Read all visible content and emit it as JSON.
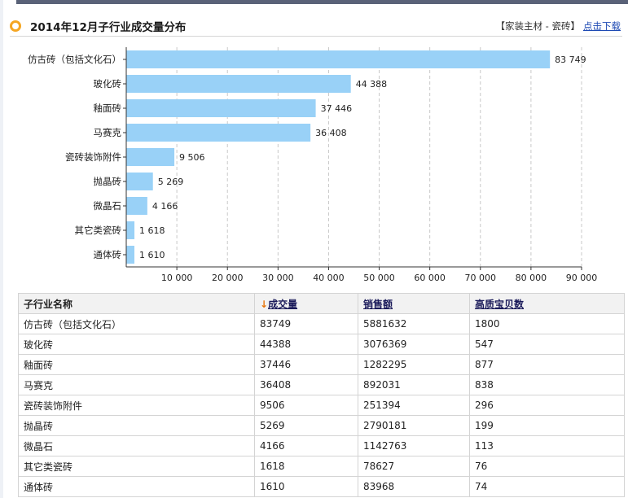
{
  "header": {
    "title": "2014年12月子行业成交量分布",
    "crumb": "【家装主材 - 瓷砖】",
    "download_label": "点击下载"
  },
  "chart_data": {
    "type": "bar",
    "orientation": "horizontal",
    "categories": [
      "仿古砖（包括文化石）",
      "玻化砖",
      "釉面砖",
      "马赛克",
      "瓷砖装饰附件",
      "抛晶砖",
      "微晶石",
      "其它类瓷砖",
      "通体砖"
    ],
    "values": [
      83749,
      44388,
      37446,
      36408,
      9506,
      5269,
      4166,
      1618,
      1610
    ],
    "value_labels": [
      "83 749",
      "44 388",
      "37 446",
      "36 408",
      "9 506",
      "5 269",
      "4 166",
      "1 618",
      "1 610"
    ],
    "xlim": [
      0,
      90000
    ],
    "xticks": [
      10000,
      20000,
      30000,
      40000,
      50000,
      60000,
      70000,
      80000,
      90000
    ],
    "xtick_labels": [
      "10 000",
      "20 000",
      "30 000",
      "40 000",
      "50 000",
      "60 000",
      "70 000",
      "80 000",
      "90 000"
    ],
    "grid": true,
    "bar_color": "#99d1f7"
  },
  "table": {
    "columns": [
      "子行业名称",
      "成交量",
      "销售额",
      "高质宝贝数"
    ],
    "sorted_arrow": "↓",
    "rows": [
      [
        "仿古砖（包括文化石）",
        "83749",
        "5881632",
        "1800"
      ],
      [
        "玻化砖",
        "44388",
        "3076369",
        "547"
      ],
      [
        "釉面砖",
        "37446",
        "1282295",
        "877"
      ],
      [
        "马赛克",
        "36408",
        "892031",
        "838"
      ],
      [
        "瓷砖装饰附件",
        "9506",
        "251394",
        "296"
      ],
      [
        "抛晶砖",
        "5269",
        "2790181",
        "199"
      ],
      [
        "微晶石",
        "4166",
        "1142763",
        "113"
      ],
      [
        "其它类瓷砖",
        "1618",
        "78627",
        "76"
      ],
      [
        "通体砖",
        "1610",
        "83968",
        "74"
      ]
    ]
  }
}
